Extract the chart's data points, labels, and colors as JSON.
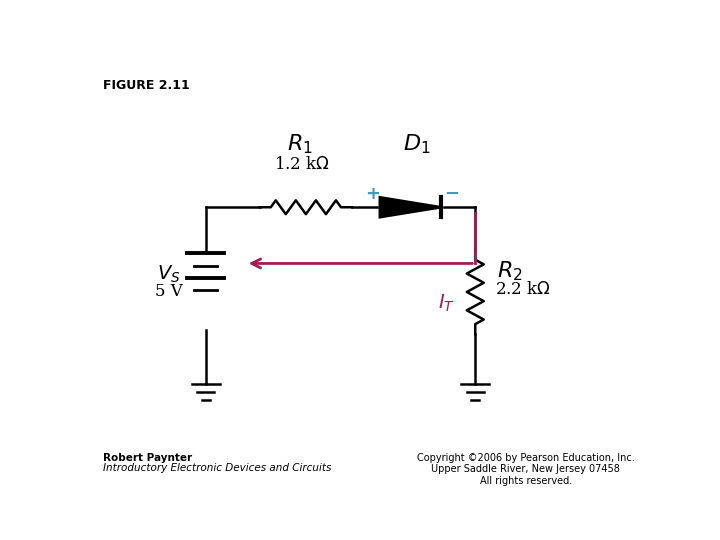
{
  "title": "FIGURE 2.11",
  "bg_color": "#ffffff",
  "circuit_color": "#000000",
  "arrow_color": "#9b2257",
  "plus_color": "#4499bb",
  "minus_color": "#4499bb",
  "IT_color": "#9b2257",
  "footer_left_bold": "Robert Paynter",
  "footer_left_italic": "Introductory Electronic Devices and Circuits",
  "footer_right": "Copyright ©2006 by Pearson Education, Inc.\nUpper Saddle River, New Jersey 07458\nAll rights reserved."
}
